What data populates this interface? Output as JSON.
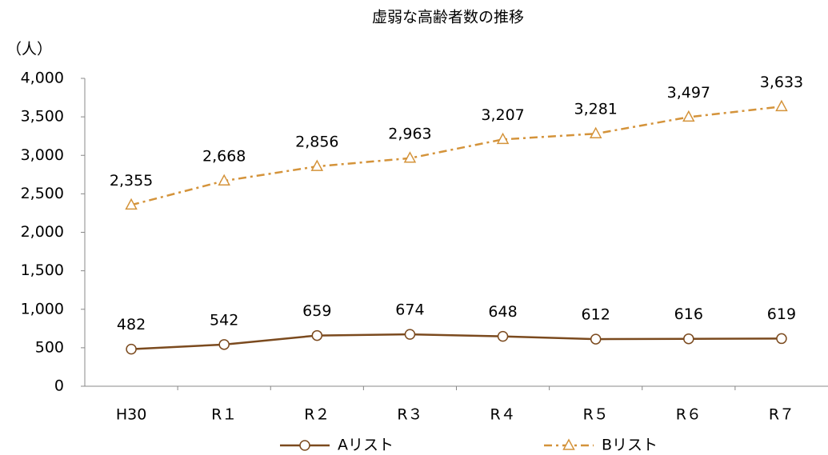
{
  "chart_data": {
    "type": "line",
    "title": "虚弱な高齢者数の推移",
    "y_label": "（人）",
    "categories": [
      "H30",
      "R１",
      "R２",
      "R３",
      "R４",
      "R５",
      "R６",
      "R７"
    ],
    "series": [
      {
        "name": "Aリスト",
        "color": "#7b4a1e",
        "marker": "circle",
        "line_style": "solid",
        "values": [
          482,
          542,
          659,
          674,
          648,
          612,
          616,
          619
        ]
      },
      {
        "name": "Bリスト",
        "color": "#d4933a",
        "marker": "triangle",
        "line_style": "dashdot",
        "values": [
          2355,
          2668,
          2856,
          2963,
          3207,
          3281,
          3497,
          3633
        ],
        "value_labels": [
          "2,355",
          "2,668",
          "2,856",
          "2,963",
          "3,207",
          "3,281",
          "3,497",
          "3,633"
        ]
      }
    ],
    "ylim": [
      0,
      4000
    ],
    "yticks": [
      0,
      500,
      {
        "value": 1000,
        "label": "1,000"
      },
      {
        "value": 1500,
        "label": "1,500"
      },
      {
        "value": 2000,
        "label": "2,000"
      },
      {
        "value": 2500,
        "label": "2,500"
      },
      {
        "value": 3000,
        "label": "3,000"
      },
      {
        "value": 3500,
        "label": "3,500"
      },
      {
        "value": 4000,
        "label": "4,000"
      }
    ],
    "grid": false,
    "legend": "bottom"
  }
}
